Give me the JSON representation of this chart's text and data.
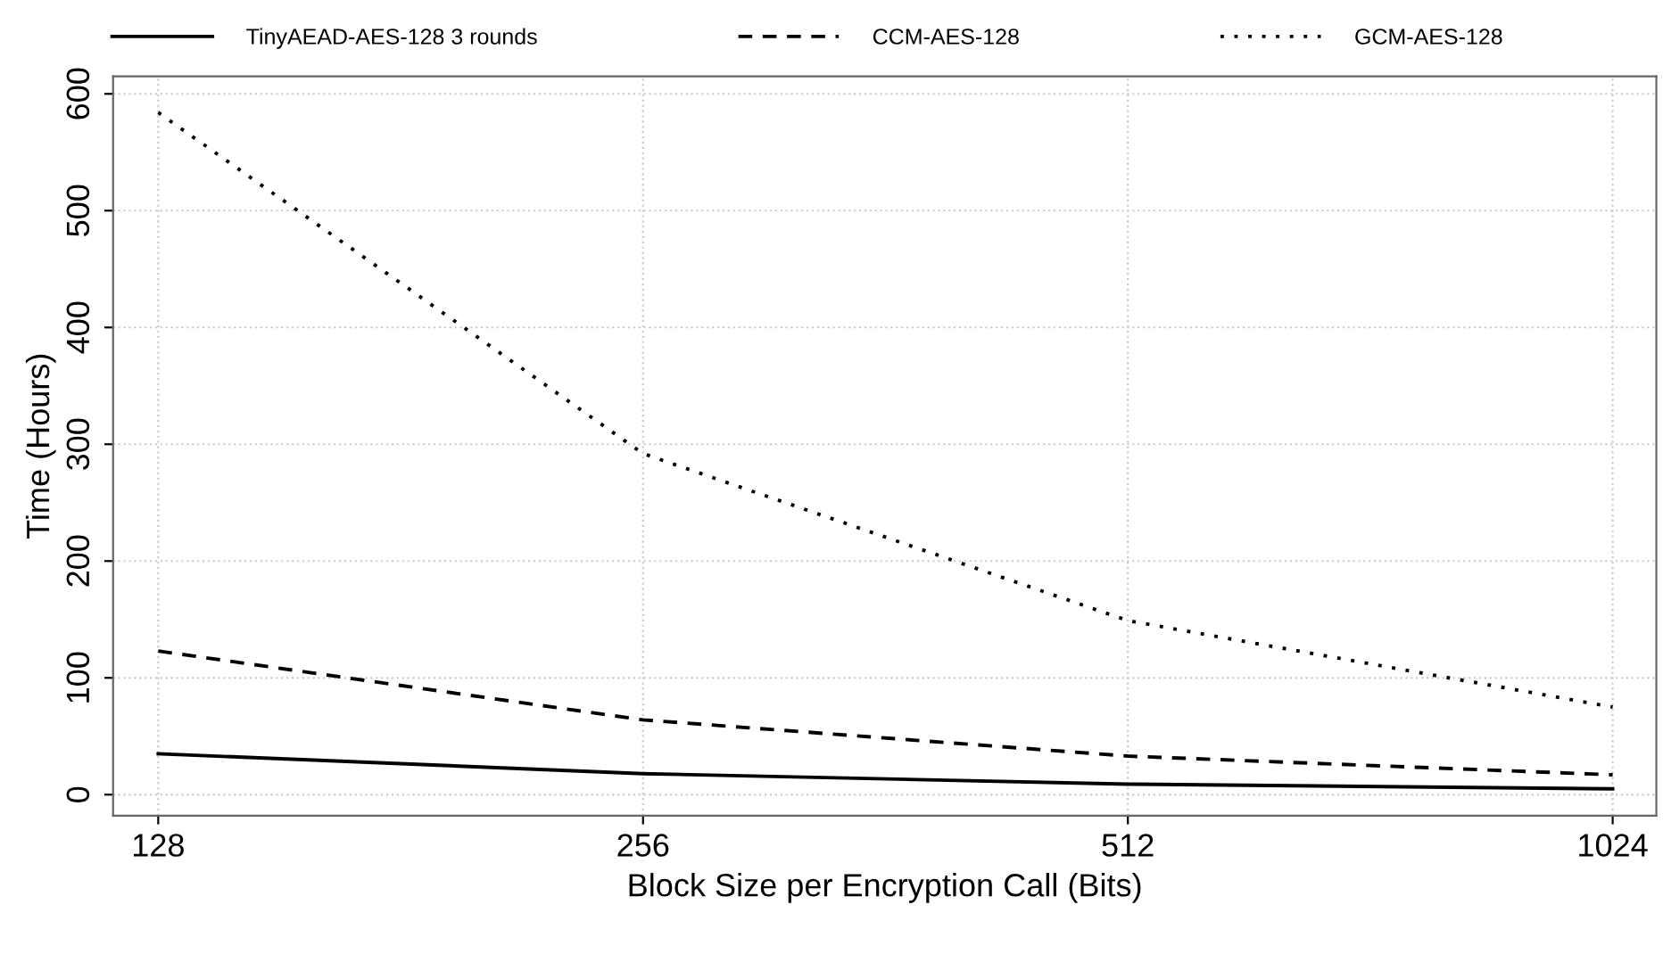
{
  "chart_data": {
    "type": "line",
    "xlabel": "Block Size per Encryption Call (Bits)",
    "ylabel": "Time (Hours)",
    "x": [
      128,
      256,
      512,
      1024
    ],
    "log": "x",
    "series": [
      {
        "name": "TinyAEAD-AES-128 3 rounds",
        "color": "#000000",
        "line_style": "solid",
        "values": [
          35,
          18,
          9,
          5
        ]
      },
      {
        "name": "CCM-AES-128",
        "color": "#000000",
        "line_style": "dashed",
        "values": [
          123,
          64,
          33,
          17
        ]
      },
      {
        "name": "GCM-AES-128",
        "color": "#000000",
        "line_style": "dotted",
        "values": [
          584,
          292,
          149,
          75
        ]
      }
    ],
    "xlim": [
      120,
      1090
    ],
    "xticks": [
      128,
      256,
      512,
      1024
    ],
    "ylim": [
      -18,
      615
    ],
    "yticks": [
      0,
      100,
      200,
      300,
      400,
      500,
      600
    ],
    "grid": true,
    "legend": "top",
    "marker": "none"
  }
}
